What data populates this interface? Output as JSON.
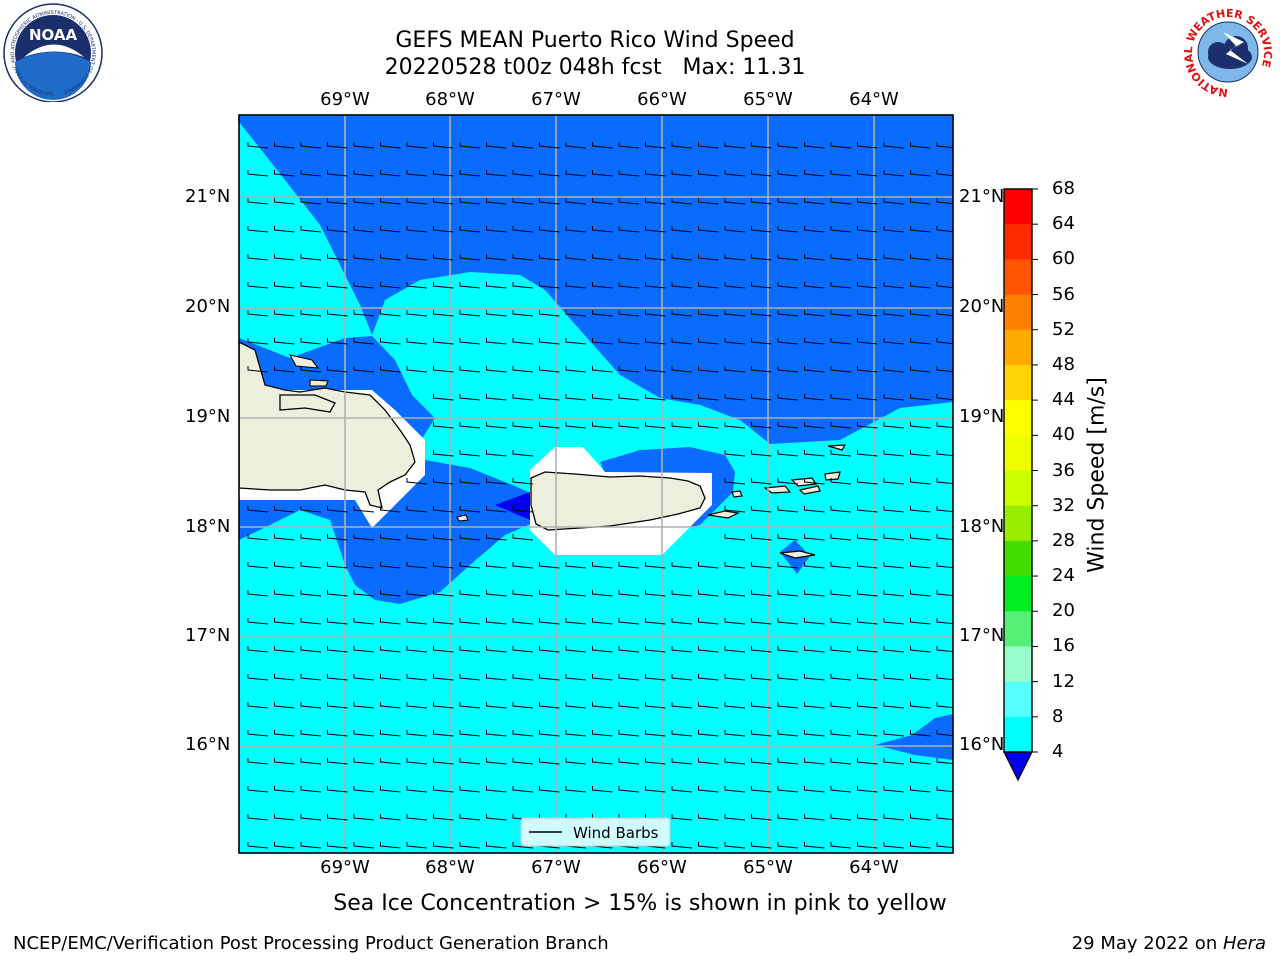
{
  "header": {
    "title_line1": "GEFS MEAN Puerto Rico Wind Speed",
    "title_line2": "20220528 t00z 048h fcst   Max: 11.31"
  },
  "logos": {
    "left": "NOAA",
    "left_ring_text": "NATIONAL OCEANIC AND ATMOSPHERIC ADMINISTRATION · U.S. DEPARTMENT OF COMMERCE",
    "right_ring_text": "NATIONAL WEATHER SERVICE"
  },
  "map": {
    "lon_labels": [
      "69°W",
      "68°W",
      "67°W",
      "66°W",
      "65°W",
      "64°W"
    ],
    "lat_labels": [
      "21°N",
      "20°N",
      "19°N",
      "18°N",
      "17°N",
      "16°N"
    ],
    "legend_label": "Wind Barbs",
    "colors": {
      "band_4_8": "#0a6cff",
      "band_8_12": "#00ffff",
      "land": "#eeeedd",
      "grid": "#b0b0b0"
    }
  },
  "colorbar": {
    "label": "Wind Speed [m/s]",
    "ticks": [
      "68",
      "64",
      "60",
      "56",
      "52",
      "48",
      "44",
      "40",
      "36",
      "32",
      "28",
      "24",
      "20",
      "16",
      "12",
      "8",
      "4"
    ],
    "colors_top_to_bottom": [
      "#ff0000",
      "#ff2a00",
      "#ff5500",
      "#ff8000",
      "#ffaa00",
      "#ffd400",
      "#ffff00",
      "#eeff00",
      "#ccff00",
      "#99ee00",
      "#44dd00",
      "#00ee22",
      "#55ee77",
      "#99ffcc",
      "#55ffff",
      "#00ffff",
      "#0a6cff"
    ],
    "extend_color": "#0000ee"
  },
  "caption": "Sea Ice Concentration > 15% is shown in pink to yellow",
  "footer": {
    "left": "NCEP/EMC/Verification Post Processing Product Generation Branch",
    "right_prefix": "29 May 2022 on ",
    "right_machine": "Hera"
  }
}
